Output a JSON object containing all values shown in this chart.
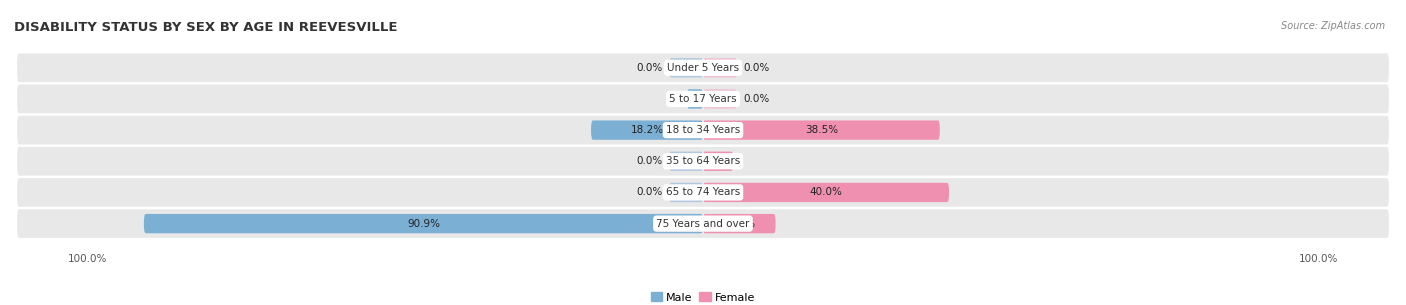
{
  "title": "DISABILITY STATUS BY SEX BY AGE IN REEVESVILLE",
  "source": "Source: ZipAtlas.com",
  "categories": [
    "Under 5 Years",
    "5 to 17 Years",
    "18 to 34 Years",
    "35 to 64 Years",
    "65 to 74 Years",
    "75 Years and over"
  ],
  "male_values": [
    0.0,
    2.6,
    18.2,
    0.0,
    0.0,
    90.9
  ],
  "female_values": [
    0.0,
    0.0,
    38.5,
    4.9,
    40.0,
    11.8
  ],
  "male_color": "#7bafd4",
  "female_color": "#f090b0",
  "male_color_light": "#b0c8e0",
  "female_color_light": "#f0c0d0",
  "row_bg_color": "#e8e8e8",
  "max_value": 100.0,
  "figsize": [
    14.06,
    3.05
  ],
  "dpi": 100,
  "title_fontsize": 9.5,
  "label_fontsize": 7.5,
  "category_fontsize": 7.5,
  "source_fontsize": 7.5
}
